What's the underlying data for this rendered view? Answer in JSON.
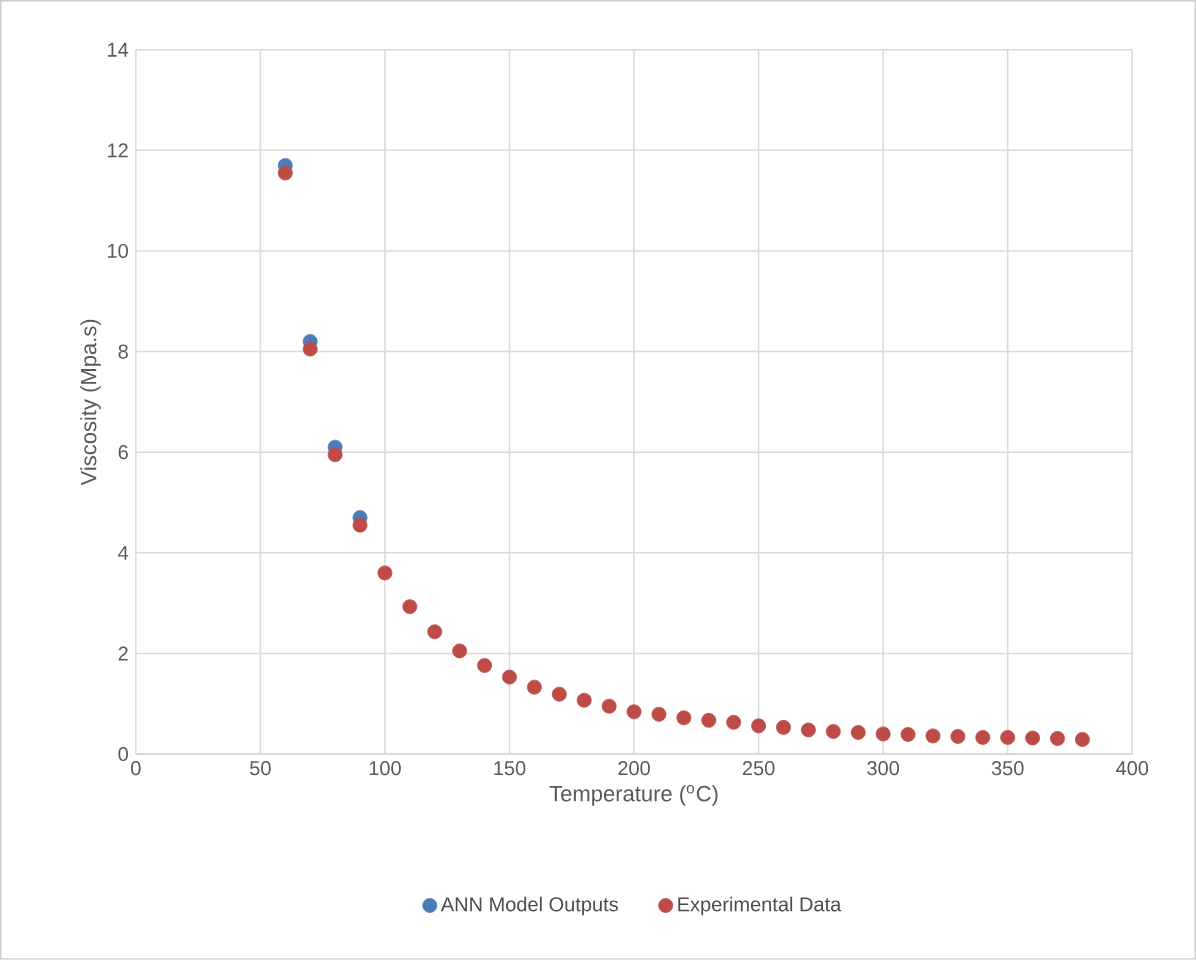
{
  "chart_data": {
    "type": "scatter",
    "xlabel": "Temperature ($^{o}$C)",
    "ylabel": "Viscosity (Mpa.s)",
    "xlim": [
      0,
      400
    ],
    "xticks": [
      0,
      50,
      100,
      150,
      200,
      250,
      300,
      350,
      400
    ],
    "ylim": [
      0,
      14
    ],
    "yticks": [
      0,
      2,
      4,
      6,
      8,
      10,
      12,
      14
    ],
    "grid": true,
    "legend": "bottom",
    "marker": "circle",
    "series": [
      {
        "name": "ANN Model Outputs",
        "color": "#4a7ebb",
        "x": [
          60,
          70,
          80,
          90
        ],
        "values": [
          11.7,
          8.2,
          6.1,
          4.7
        ]
      },
      {
        "name": "Experimental Data",
        "color": "#be4b48",
        "x": [
          60,
          70,
          80,
          90,
          100,
          110,
          120,
          130,
          140,
          150,
          160,
          170,
          180,
          190,
          200,
          210,
          220,
          230,
          240,
          250,
          260,
          270,
          280,
          290,
          300,
          310,
          320,
          330,
          340,
          350,
          360,
          370,
          380
        ],
        "values": [
          11.55,
          8.05,
          5.95,
          4.55,
          3.6,
          2.93,
          2.43,
          2.05,
          1.76,
          1.53,
          1.33,
          1.19,
          1.07,
          0.95,
          0.84,
          0.79,
          0.72,
          0.67,
          0.63,
          0.56,
          0.53,
          0.48,
          0.45,
          0.43,
          0.4,
          0.39,
          0.36,
          0.35,
          0.33,
          0.33,
          0.32,
          0.31,
          0.29
        ]
      }
    ]
  }
}
